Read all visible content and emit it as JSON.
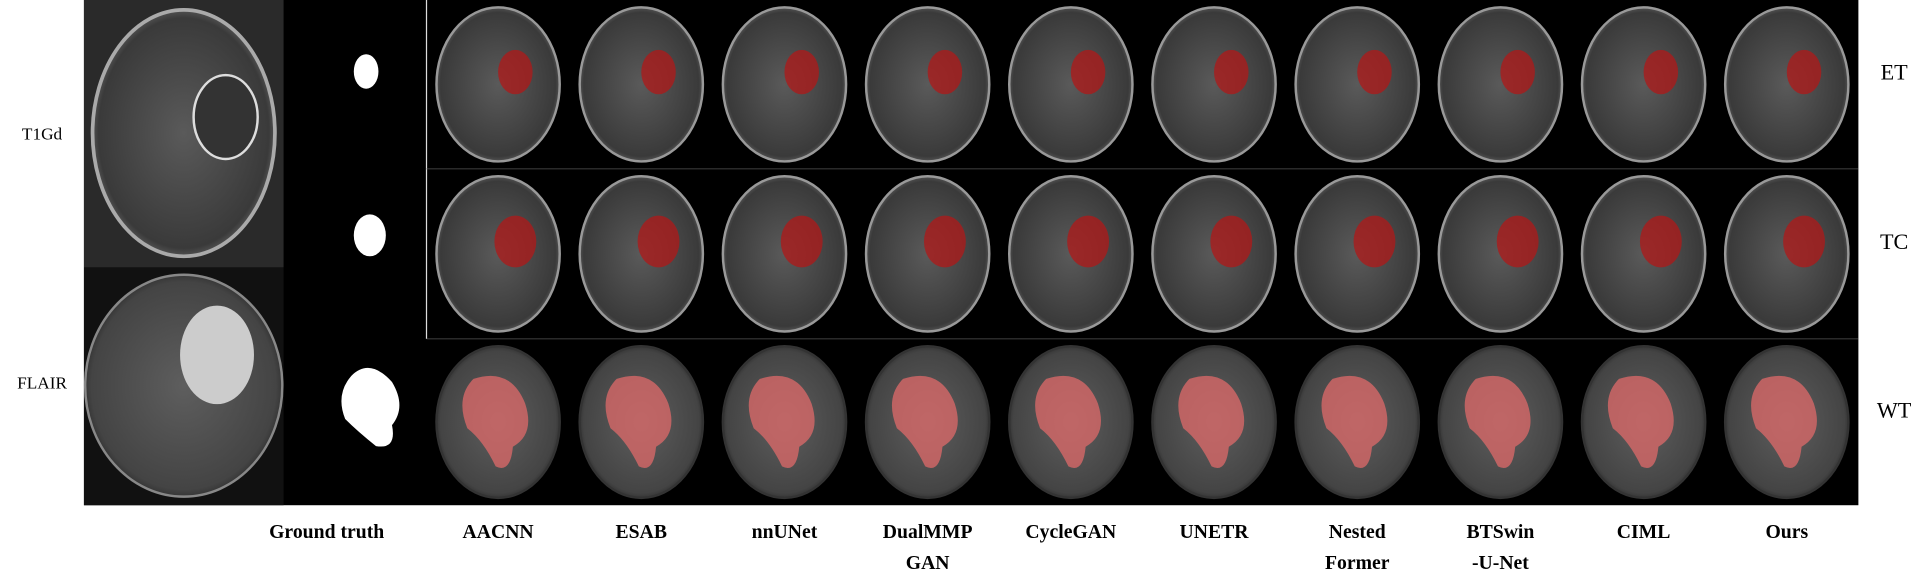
{
  "left_panel": {
    "row_labels": [
      "T1Gd",
      "FLAIR"
    ]
  },
  "right_labels": [
    "ET",
    "TC",
    "WT"
  ],
  "columns": [
    [
      "Ground truth"
    ],
    [
      "AACNN"
    ],
    [
      "ESAB"
    ],
    [
      "nnUNet"
    ],
    [
      "DualMMP",
      "GAN"
    ],
    [
      "CycleGAN"
    ],
    [
      "UNETR"
    ],
    [
      "Nested",
      "Former"
    ],
    [
      "BTSwin",
      "-U-Net"
    ],
    [
      "CIML"
    ],
    [
      "Ours"
    ]
  ]
}
